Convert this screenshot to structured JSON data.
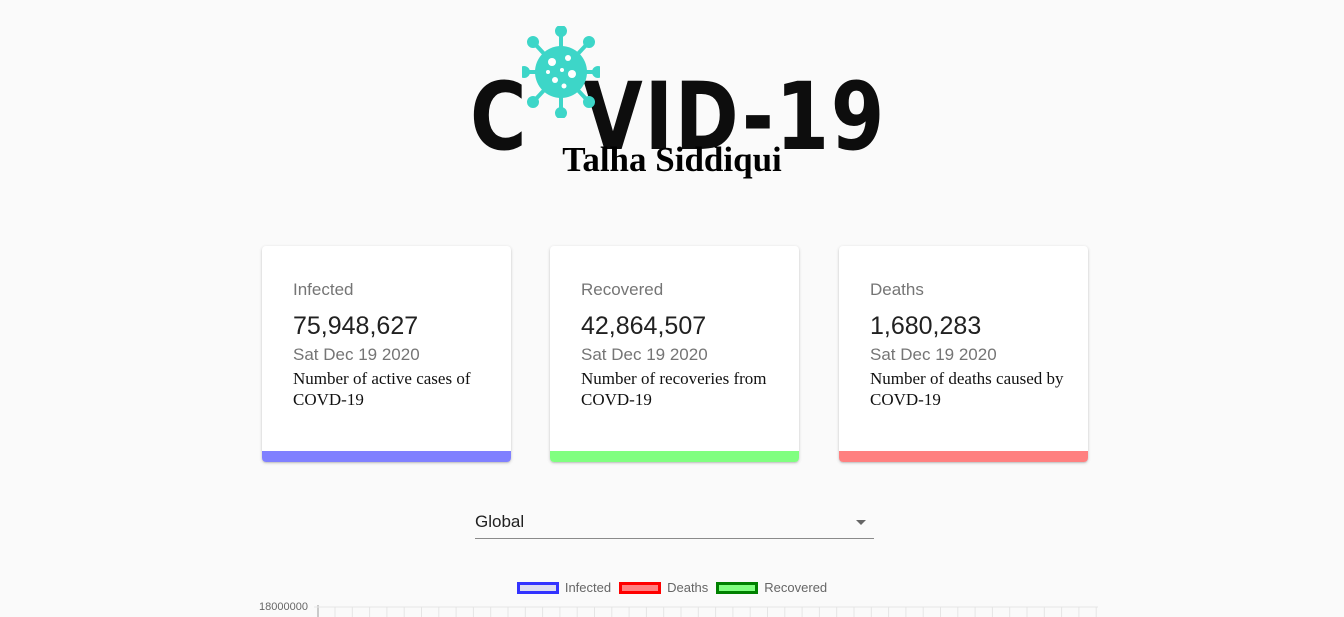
{
  "header": {
    "logo_text": "COVID-19",
    "logo_glyph_c": "C",
    "logo_glyph_rest": "VID-19",
    "author": "Talha Siddiqui"
  },
  "cards": [
    {
      "label": "Infected",
      "count": "75,948,627",
      "date": "Sat Dec 19 2020",
      "description": "Number of active cases of COVD-19",
      "accent": "#8080ff"
    },
    {
      "label": "Recovered",
      "count": "42,864,507",
      "date": "Sat Dec 19 2020",
      "description": "Number of recoveries from COVD-19",
      "accent": "#80ff80"
    },
    {
      "label": "Deaths",
      "count": "1,680,283",
      "date": "Sat Dec 19 2020",
      "description": "Number of deaths caused by COVD-19",
      "accent": "#ff8080"
    }
  ],
  "country_select": {
    "value": "Global"
  },
  "chart": {
    "legend": [
      {
        "label": "Infected",
        "border": "#3333ff",
        "fill": "#dcdcf0"
      },
      {
        "label": "Deaths",
        "border": "#ff0000",
        "fill": "#ff8080"
      },
      {
        "label": "Recovered",
        "border": "#008000",
        "fill": "#80ff80"
      }
    ],
    "y_top_tick": "18000000"
  },
  "colors": {
    "virus": "#3dd6c8",
    "logo_text": "#0d0d0d"
  }
}
